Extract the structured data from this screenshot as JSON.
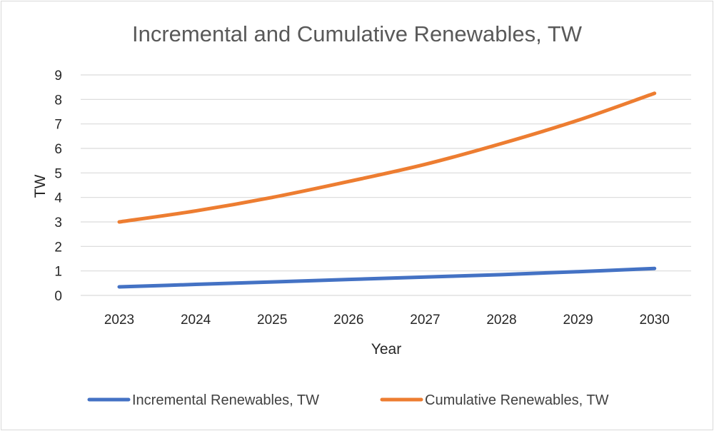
{
  "chart_data": {
    "type": "line",
    "title": "Incremental and Cumulative Renewables, TW",
    "xlabel": "Year",
    "ylabel": "TW",
    "categories": [
      "2023",
      "2024",
      "2025",
      "2026",
      "2027",
      "2028",
      "2029",
      "2030"
    ],
    "ylim": [
      0,
      9
    ],
    "yticks": [
      "0",
      "1",
      "2",
      "3",
      "4",
      "5",
      "6",
      "7",
      "8",
      "9"
    ],
    "grid": true,
    "legend_position": "bottom",
    "series": [
      {
        "name": "Incremental Renewables, TW",
        "color": "#4472c4",
        "values": [
          0.35,
          0.45,
          0.55,
          0.65,
          0.75,
          0.85,
          0.97,
          1.1
        ]
      },
      {
        "name": "Cumulative Renewables, TW",
        "color": "#ed7d31",
        "values": [
          3.0,
          3.45,
          4.0,
          4.65,
          5.35,
          6.2,
          7.15,
          8.25
        ]
      }
    ]
  }
}
